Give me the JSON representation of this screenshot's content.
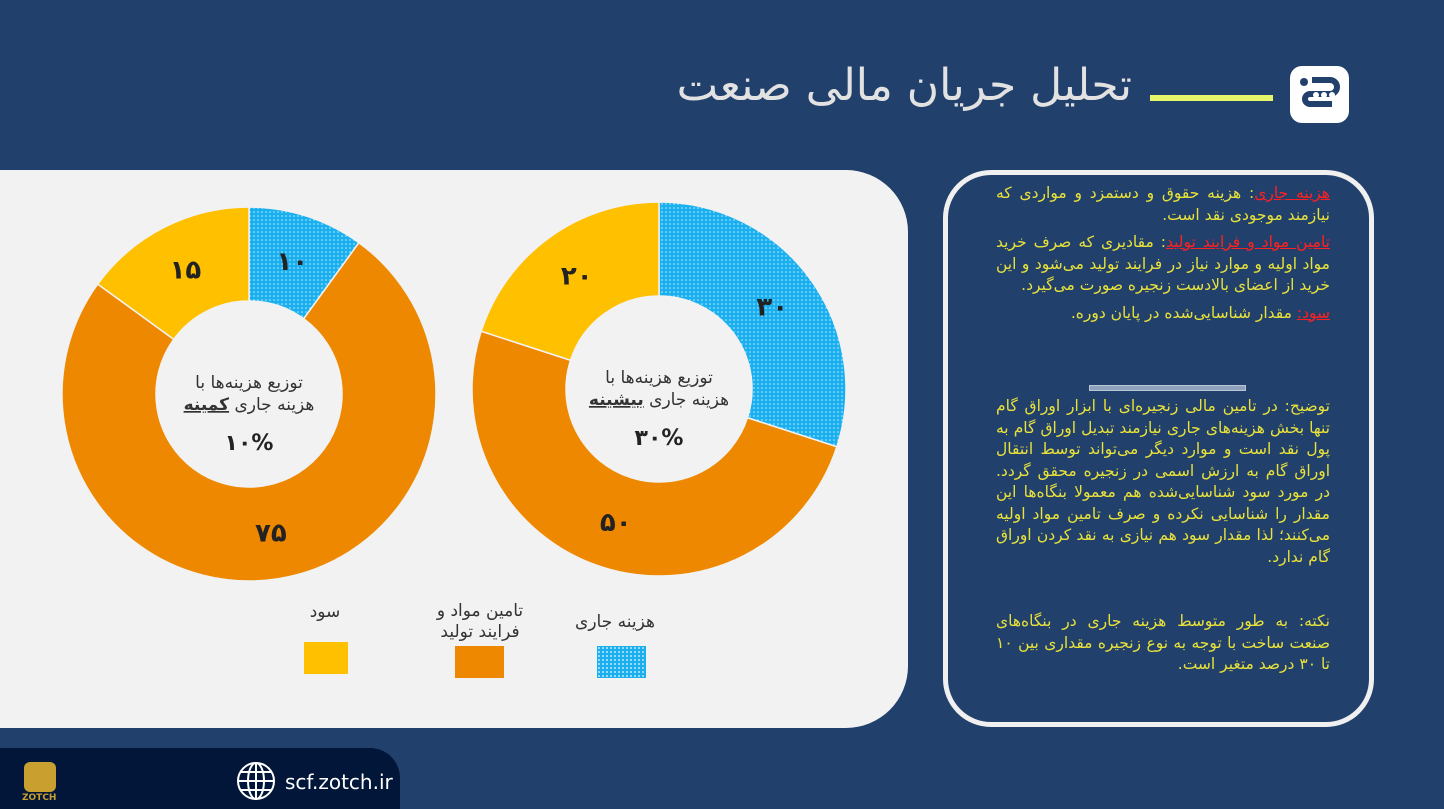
{
  "header": {
    "title": "تحلیل جریان مالی صنعت"
  },
  "chart_data": [
    {
      "type": "pie",
      "donut": true,
      "title_line1": "توزیع هزینه‌ها با",
      "title_line2_prefix": "هزینه جاری ",
      "title_line2_emph": "کمینه",
      "center_value": "۱۰%",
      "categories": [
        "هزینه جاری",
        "تامین مواد و فرایند تولید",
        "سود"
      ],
      "values": [
        10,
        75,
        15
      ],
      "labels": [
        "۱۰",
        "۷۵",
        "۱۵"
      ]
    },
    {
      "type": "pie",
      "donut": true,
      "title_line1": "توزیع هزینه‌ها با",
      "title_line2_prefix": "هزینه جاری ",
      "title_line2_emph": "بیشینه",
      "center_value": "۳۰%",
      "categories": [
        "هزینه جاری",
        "تامین مواد و فرایند تولید",
        "سود"
      ],
      "values": [
        30,
        50,
        20
      ],
      "labels": [
        "۳۰",
        "۵۰",
        "۲۰"
      ]
    }
  ],
  "colors": {
    "current": "#1ab0f0",
    "material": "#ee8800",
    "profit": "#ffc000"
  },
  "legend": [
    {
      "label": "هزینه جاری",
      "color": "#1ab0f0"
    },
    {
      "label": "تامین مواد و فرایند تولید",
      "color": "#ee8800"
    },
    {
      "label": "سود",
      "color": "#ffc000"
    }
  ],
  "info": {
    "t1_key": "هزینه جاری",
    "t1_body": ": هزینه حقوق و دستمزد و مواردی که نیازمند موجودی نقد است.",
    "t2_key": "تامین مواد و فرایند تولید",
    "t2_body": ": مقادیری که صرف خرید مواد اولیه و موارد نیاز در فرایند تولید می‌شود و این خرید از اعضای بالادست زنجیره صورت می‌گیرد.",
    "t3_key": "سود:",
    "t3_body": " مقدار شناسایی‌شده در پایان دوره.",
    "desc": "توضیح: در تامین مالی زنجیره‌ای با ابزار اوراق گام تنها بخش هزینه‌های جاری نیازمند تبدیل اوراق گام به پول نقد است و موارد دیگر می‌تواند توسط انتقال اوراق گام به ارزش اسمی در زنجیره محقق گردد. در مورد سود شناسایی‌شده هم معمولا بنگاه‌ها این مقدار را شناسایی نکرده و صرف تامین مواد اولیه می‌کنند؛ لذا مقدار سود هم نیازی به نقد کردن اوراق گام ندارد.",
    "note": "نکته: به طور متوسط هزینه جاری در بنگاه‌های صنعت ساخت با توجه به نوع زنجیره مقداری بین ۱۰ تا ۳۰ درصد متغیر است."
  },
  "footer": {
    "brand": "ZOTCH",
    "url": "scf.zotch.ir"
  }
}
